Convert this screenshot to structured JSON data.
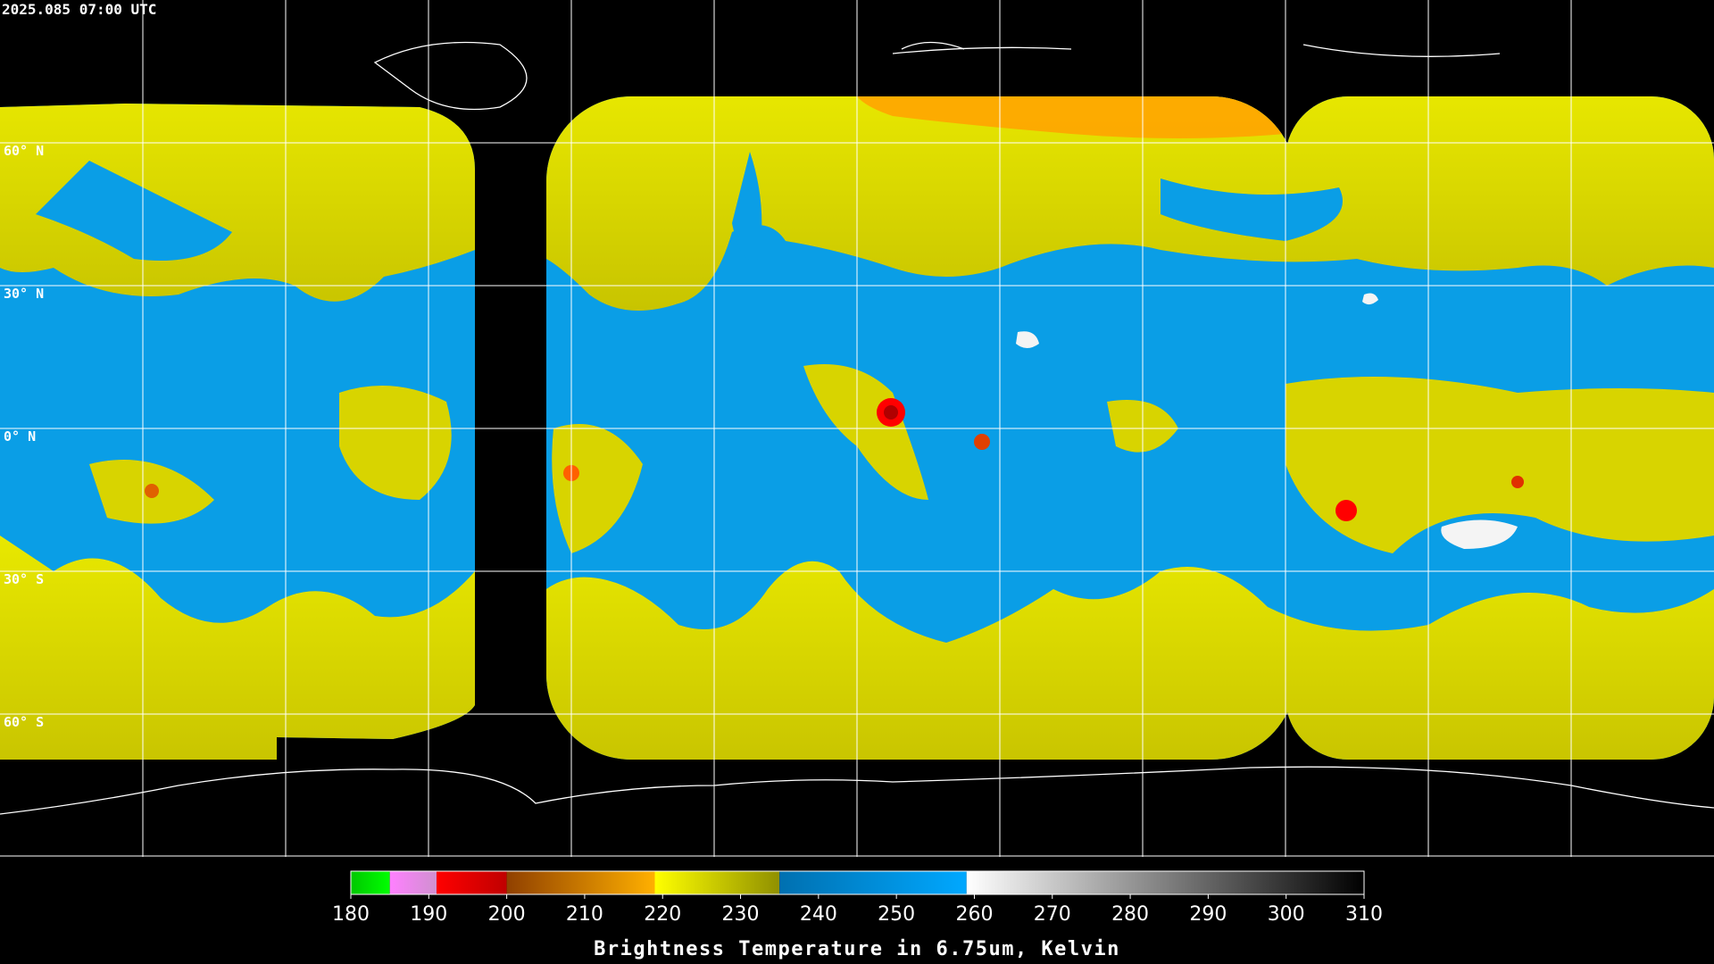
{
  "header": {
    "timestamp": "2025.085 07:00 UTC"
  },
  "map": {
    "lat_labels": [
      "60° N",
      "30° N",
      "0° N",
      "30° S",
      "60° S"
    ]
  },
  "colorbar": {
    "range": [
      180,
      310
    ],
    "ticks": [
      180,
      190,
      200,
      210,
      220,
      230,
      240,
      250,
      260,
      270,
      280,
      290,
      300,
      310
    ],
    "segments": [
      {
        "from": 180,
        "to": 185,
        "colors": [
          "#00c800",
          "#00ff00"
        ]
      },
      {
        "from": 185,
        "to": 191,
        "colors": [
          "#ff80ff",
          "#d090d0"
        ]
      },
      {
        "from": 191,
        "to": 200,
        "colors": [
          "#ff0000",
          "#c00000"
        ]
      },
      {
        "from": 200,
        "to": 219,
        "colors": [
          "#904000",
          "#ffb000"
        ]
      },
      {
        "from": 219,
        "to": 235,
        "colors": [
          "#ffff00",
          "#909000"
        ]
      },
      {
        "from": 235,
        "to": 259,
        "colors": [
          "#0070b0",
          "#00a8ff"
        ]
      },
      {
        "from": 259,
        "to": 310,
        "colors": [
          "#ffffff",
          "#000000"
        ]
      }
    ],
    "label": "Brightness Temperature in 6.75um, Kelvin"
  }
}
